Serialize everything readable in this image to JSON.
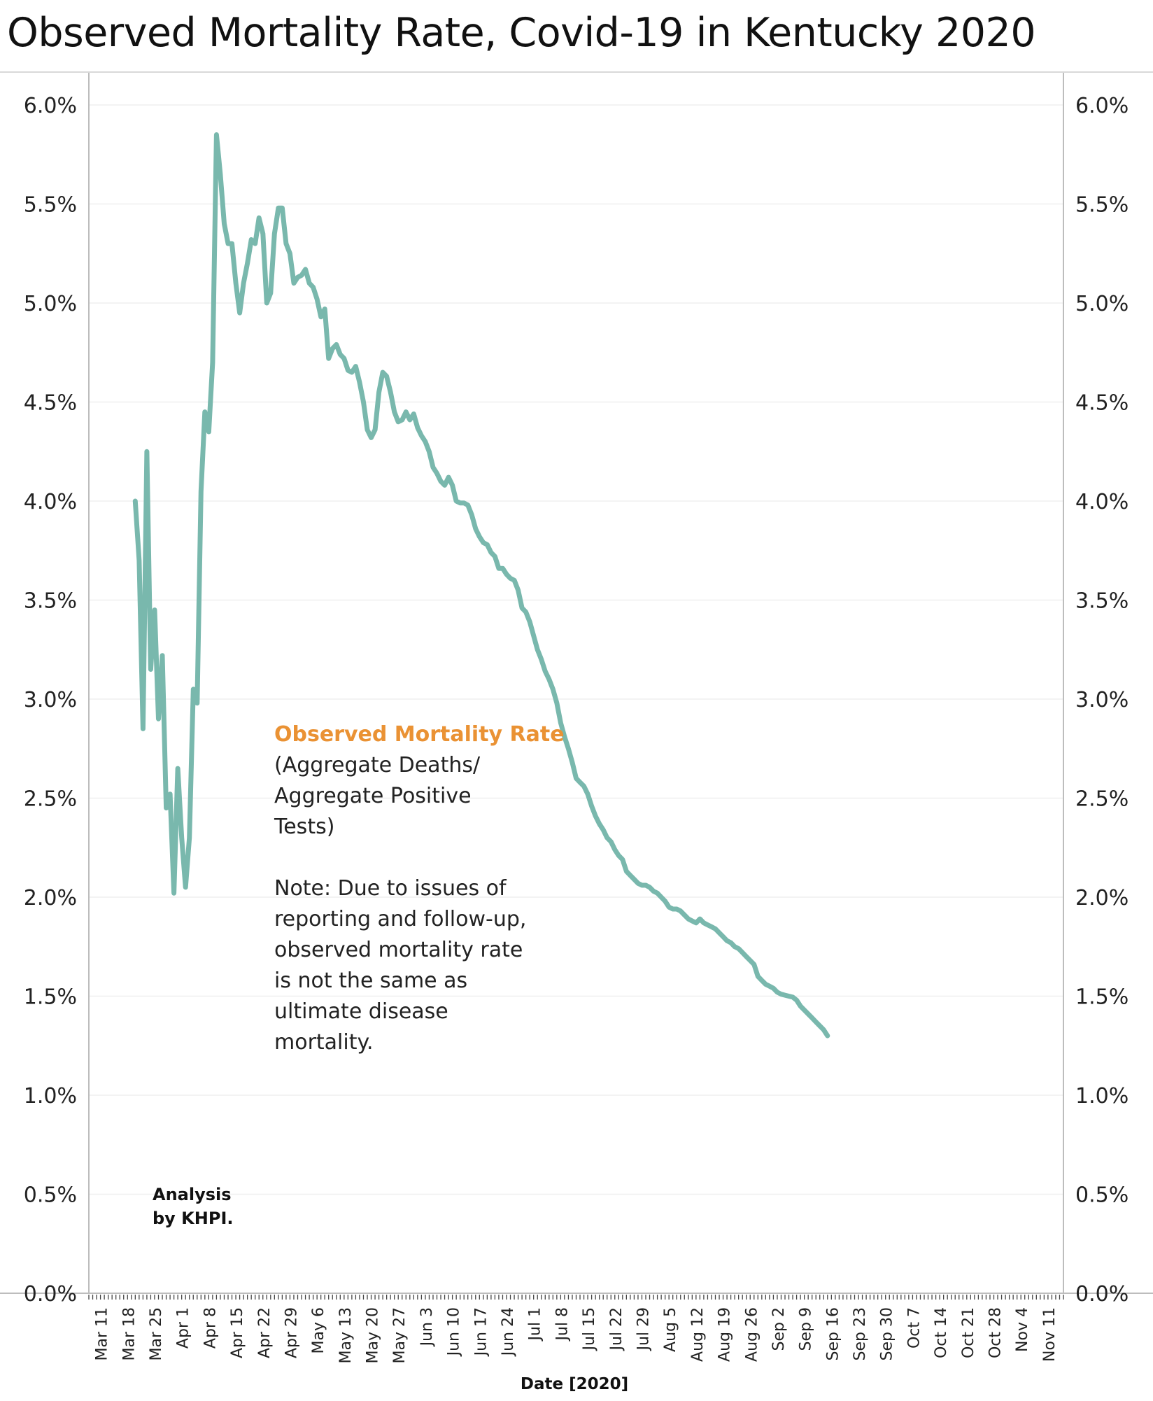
{
  "title": "Observed Mortality Rate, Covid-19 in Kentucky 2020",
  "annotation": {
    "heading": "Observed Mortality Rate",
    "line1": "(Aggregate Deaths/",
    "line2": "Aggregate Positive",
    "line3": "Tests)",
    "note1": "Note: Due to issues of",
    "note2": "reporting and follow-up,",
    "note3": "observed mortality rate",
    "note4": "is not the same as",
    "note5": "ultimate disease",
    "note6": "mortality."
  },
  "credit": {
    "line1": "Analysis",
    "line2": "by KHPI."
  },
  "colors": {
    "line": "#79b8ad",
    "heading": "#ea9234",
    "grid": "#efefef",
    "axis": "#bdbdbd"
  },
  "chart_data": {
    "type": "line",
    "xlabel": "Date [2020]",
    "ylim": [
      0,
      6
    ],
    "yticks": [
      "0.0%",
      "0.5%",
      "1.0%",
      "1.5%",
      "2.0%",
      "2.5%",
      "3.0%",
      "3.5%",
      "4.0%",
      "4.5%",
      "5.0%",
      "5.5%",
      "6.0%"
    ],
    "y_axes": "left and right",
    "grid": "horizontal",
    "x_start": "2020-03-08",
    "x_end": "2020-11-15",
    "xticks": [
      {
        "label": "Mar 11",
        "date": "2020-03-11"
      },
      {
        "label": "Mar 18",
        "date": "2020-03-18"
      },
      {
        "label": "Mar 25",
        "date": "2020-03-25"
      },
      {
        "label": "Apr 1",
        "date": "2020-04-01"
      },
      {
        "label": "Apr 8",
        "date": "2020-04-08"
      },
      {
        "label": "Apr 15",
        "date": "2020-04-15"
      },
      {
        "label": "Apr 22",
        "date": "2020-04-22"
      },
      {
        "label": "Apr 29",
        "date": "2020-04-29"
      },
      {
        "label": "May 6",
        "date": "2020-05-06"
      },
      {
        "label": "May 13",
        "date": "2020-05-13"
      },
      {
        "label": "May 20",
        "date": "2020-05-20"
      },
      {
        "label": "May 27",
        "date": "2020-05-27"
      },
      {
        "label": "Jun 3",
        "date": "2020-06-03"
      },
      {
        "label": "Jun 10",
        "date": "2020-06-10"
      },
      {
        "label": "Jun 17",
        "date": "2020-06-17"
      },
      {
        "label": "Jun 24",
        "date": "2020-06-24"
      },
      {
        "label": "Jul 1",
        "date": "2020-07-01"
      },
      {
        "label": "Jul 8",
        "date": "2020-07-08"
      },
      {
        "label": "Jul 15",
        "date": "2020-07-15"
      },
      {
        "label": "Jul 22",
        "date": "2020-07-22"
      },
      {
        "label": "Jul 29",
        "date": "2020-07-29"
      },
      {
        "label": "Aug 5",
        "date": "2020-08-05"
      },
      {
        "label": "Aug 12",
        "date": "2020-08-12"
      },
      {
        "label": "Aug 19",
        "date": "2020-08-19"
      },
      {
        "label": "Aug 26",
        "date": "2020-08-26"
      },
      {
        "label": "Sep 2",
        "date": "2020-09-02"
      },
      {
        "label": "Sep 9",
        "date": "2020-09-09"
      },
      {
        "label": "Sep 16",
        "date": "2020-09-16"
      },
      {
        "label": "Sep 23",
        "date": "2020-09-23"
      },
      {
        "label": "Sep 30",
        "date": "2020-09-30"
      },
      {
        "label": "Oct 7",
        "date": "2020-10-07"
      },
      {
        "label": "Oct 14",
        "date": "2020-10-14"
      },
      {
        "label": "Oct 21",
        "date": "2020-10-21"
      },
      {
        "label": "Oct 28",
        "date": "2020-10-28"
      },
      {
        "label": "Nov 4",
        "date": "2020-11-04"
      },
      {
        "label": "Nov 11",
        "date": "2020-11-11"
      }
    ],
    "series": [
      {
        "points": [
          [
            "2020-03-20",
            4.0
          ],
          [
            "2020-03-21",
            3.7
          ],
          [
            "2020-03-22",
            2.85
          ],
          [
            "2020-03-23",
            4.25
          ],
          [
            "2020-03-24",
            3.15
          ],
          [
            "2020-03-25",
            3.45
          ],
          [
            "2020-03-26",
            2.9
          ],
          [
            "2020-03-27",
            3.22
          ],
          [
            "2020-03-28",
            2.45
          ],
          [
            "2020-03-29",
            2.52
          ],
          [
            "2020-03-30",
            2.02
          ],
          [
            "2020-03-31",
            2.65
          ],
          [
            "2020-04-01",
            2.3
          ],
          [
            "2020-04-02",
            2.05
          ],
          [
            "2020-04-03",
            2.3
          ],
          [
            "2020-04-04",
            3.05
          ],
          [
            "2020-04-05",
            2.98
          ],
          [
            "2020-04-06",
            4.05
          ],
          [
            "2020-04-07",
            4.45
          ],
          [
            "2020-04-08",
            4.35
          ],
          [
            "2020-04-09",
            4.7
          ],
          [
            "2020-04-10",
            5.85
          ],
          [
            "2020-04-11",
            5.65
          ],
          [
            "2020-04-12",
            5.4
          ],
          [
            "2020-04-13",
            5.3
          ],
          [
            "2020-04-14",
            5.3
          ],
          [
            "2020-04-15",
            5.1
          ],
          [
            "2020-04-16",
            4.95
          ],
          [
            "2020-04-17",
            5.1
          ],
          [
            "2020-04-18",
            5.2
          ],
          [
            "2020-04-19",
            5.32
          ],
          [
            "2020-04-20",
            5.3
          ],
          [
            "2020-04-21",
            5.43
          ],
          [
            "2020-04-22",
            5.35
          ],
          [
            "2020-04-23",
            5.0
          ],
          [
            "2020-04-24",
            5.05
          ],
          [
            "2020-04-25",
            5.35
          ],
          [
            "2020-04-26",
            5.48
          ],
          [
            "2020-04-27",
            5.48
          ],
          [
            "2020-04-28",
            5.3
          ],
          [
            "2020-04-29",
            5.25
          ],
          [
            "2020-04-30",
            5.1
          ],
          [
            "2020-05-01",
            5.13
          ],
          [
            "2020-05-02",
            5.14
          ],
          [
            "2020-05-03",
            5.17
          ],
          [
            "2020-05-04",
            5.1
          ],
          [
            "2020-05-05",
            5.08
          ],
          [
            "2020-05-06",
            5.02
          ],
          [
            "2020-05-07",
            4.93
          ],
          [
            "2020-05-08",
            4.97
          ],
          [
            "2020-05-09",
            4.72
          ],
          [
            "2020-05-10",
            4.77
          ],
          [
            "2020-05-11",
            4.79
          ],
          [
            "2020-05-12",
            4.74
          ],
          [
            "2020-05-13",
            4.72
          ],
          [
            "2020-05-14",
            4.66
          ],
          [
            "2020-05-15",
            4.65
          ],
          [
            "2020-05-16",
            4.68
          ],
          [
            "2020-05-17",
            4.6
          ],
          [
            "2020-05-18",
            4.5
          ],
          [
            "2020-05-19",
            4.36
          ],
          [
            "2020-05-20",
            4.32
          ],
          [
            "2020-05-21",
            4.36
          ],
          [
            "2020-05-22",
            4.55
          ],
          [
            "2020-05-23",
            4.65
          ],
          [
            "2020-05-24",
            4.63
          ],
          [
            "2020-05-25",
            4.55
          ],
          [
            "2020-05-26",
            4.45
          ],
          [
            "2020-05-27",
            4.4
          ],
          [
            "2020-05-28",
            4.41
          ],
          [
            "2020-05-29",
            4.45
          ],
          [
            "2020-05-30",
            4.41
          ],
          [
            "2020-05-31",
            4.44
          ],
          [
            "2020-06-01",
            4.37
          ],
          [
            "2020-06-02",
            4.33
          ],
          [
            "2020-06-03",
            4.3
          ],
          [
            "2020-06-04",
            4.25
          ],
          [
            "2020-06-05",
            4.17
          ],
          [
            "2020-06-06",
            4.14
          ],
          [
            "2020-06-07",
            4.1
          ],
          [
            "2020-06-08",
            4.08
          ],
          [
            "2020-06-09",
            4.12
          ],
          [
            "2020-06-10",
            4.08
          ],
          [
            "2020-06-11",
            4.0
          ],
          [
            "2020-06-12",
            3.99
          ],
          [
            "2020-06-13",
            3.99
          ],
          [
            "2020-06-14",
            3.98
          ],
          [
            "2020-06-15",
            3.93
          ],
          [
            "2020-06-16",
            3.86
          ],
          [
            "2020-06-17",
            3.82
          ],
          [
            "2020-06-18",
            3.79
          ],
          [
            "2020-06-19",
            3.78
          ],
          [
            "2020-06-20",
            3.74
          ],
          [
            "2020-06-21",
            3.72
          ],
          [
            "2020-06-22",
            3.66
          ],
          [
            "2020-06-23",
            3.66
          ],
          [
            "2020-06-24",
            3.63
          ],
          [
            "2020-06-25",
            3.61
          ],
          [
            "2020-06-26",
            3.6
          ],
          [
            "2020-06-27",
            3.55
          ],
          [
            "2020-06-28",
            3.46
          ],
          [
            "2020-06-29",
            3.44
          ],
          [
            "2020-06-30",
            3.39
          ],
          [
            "2020-07-01",
            3.32
          ],
          [
            "2020-07-02",
            3.25
          ],
          [
            "2020-07-03",
            3.2
          ],
          [
            "2020-07-04",
            3.14
          ],
          [
            "2020-07-05",
            3.1
          ],
          [
            "2020-07-06",
            3.05
          ],
          [
            "2020-07-07",
            2.98
          ],
          [
            "2020-07-08",
            2.88
          ],
          [
            "2020-07-09",
            2.81
          ],
          [
            "2020-07-10",
            2.75
          ],
          [
            "2020-07-11",
            2.68
          ],
          [
            "2020-07-12",
            2.6
          ],
          [
            "2020-07-13",
            2.58
          ],
          [
            "2020-07-14",
            2.56
          ],
          [
            "2020-07-15",
            2.52
          ],
          [
            "2020-07-16",
            2.46
          ],
          [
            "2020-07-17",
            2.41
          ],
          [
            "2020-07-18",
            2.37
          ],
          [
            "2020-07-19",
            2.34
          ],
          [
            "2020-07-20",
            2.3
          ],
          [
            "2020-07-21",
            2.28
          ],
          [
            "2020-07-22",
            2.24
          ],
          [
            "2020-07-23",
            2.21
          ],
          [
            "2020-07-24",
            2.19
          ],
          [
            "2020-07-25",
            2.13
          ],
          [
            "2020-07-26",
            2.11
          ],
          [
            "2020-07-27",
            2.09
          ],
          [
            "2020-07-28",
            2.07
          ],
          [
            "2020-07-29",
            2.06
          ],
          [
            "2020-07-30",
            2.06
          ],
          [
            "2020-07-31",
            2.05
          ],
          [
            "2020-08-01",
            2.03
          ],
          [
            "2020-08-02",
            2.02
          ],
          [
            "2020-08-03",
            2.0
          ],
          [
            "2020-08-04",
            1.98
          ],
          [
            "2020-08-05",
            1.95
          ],
          [
            "2020-08-06",
            1.94
          ],
          [
            "2020-08-07",
            1.94
          ],
          [
            "2020-08-08",
            1.93
          ],
          [
            "2020-08-09",
            1.91
          ],
          [
            "2020-08-10",
            1.89
          ],
          [
            "2020-08-11",
            1.88
          ],
          [
            "2020-08-12",
            1.87
          ],
          [
            "2020-08-13",
            1.89
          ],
          [
            "2020-08-14",
            1.87
          ],
          [
            "2020-08-15",
            1.86
          ],
          [
            "2020-08-16",
            1.85
          ],
          [
            "2020-08-17",
            1.84
          ],
          [
            "2020-08-18",
            1.82
          ],
          [
            "2020-08-19",
            1.8
          ],
          [
            "2020-08-20",
            1.78
          ],
          [
            "2020-08-21",
            1.77
          ],
          [
            "2020-08-22",
            1.75
          ],
          [
            "2020-08-23",
            1.74
          ],
          [
            "2020-08-24",
            1.72
          ],
          [
            "2020-08-25",
            1.7
          ],
          [
            "2020-08-26",
            1.68
          ],
          [
            "2020-08-27",
            1.66
          ],
          [
            "2020-08-28",
            1.6
          ],
          [
            "2020-08-29",
            1.58
          ],
          [
            "2020-08-30",
            1.56
          ],
          [
            "2020-08-31",
            1.55
          ],
          [
            "2020-09-01",
            1.54
          ],
          [
            "2020-09-02",
            1.52
          ],
          [
            "2020-09-03",
            1.51
          ],
          [
            "2020-09-04",
            1.505
          ],
          [
            "2020-09-05",
            1.5
          ],
          [
            "2020-09-06",
            1.495
          ],
          [
            "2020-09-07",
            1.48
          ],
          [
            "2020-09-08",
            1.45
          ],
          [
            "2020-09-09",
            1.43
          ],
          [
            "2020-09-10",
            1.41
          ],
          [
            "2020-09-11",
            1.39
          ],
          [
            "2020-09-12",
            1.37
          ],
          [
            "2020-09-13",
            1.35
          ],
          [
            "2020-09-14",
            1.33
          ],
          [
            "2020-09-15",
            1.3
          ]
        ]
      }
    ]
  }
}
